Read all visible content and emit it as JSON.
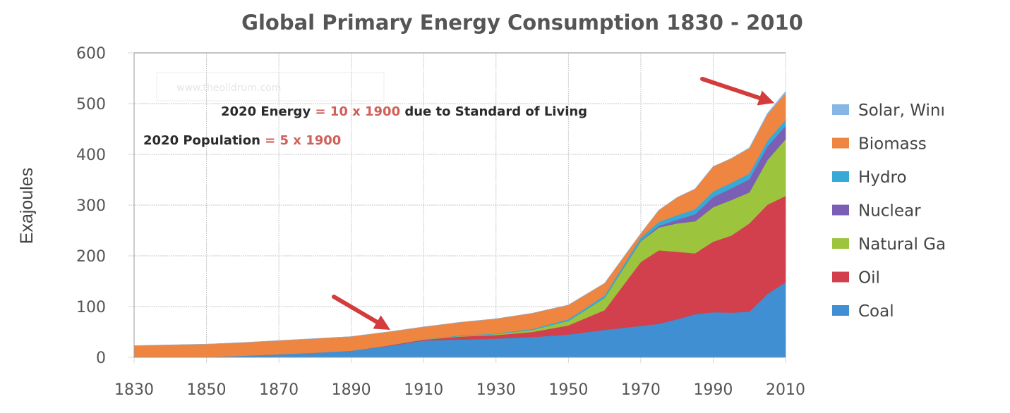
{
  "chart_data": {
    "type": "area",
    "stacked": true,
    "title": "Global Primary Energy Consumption 1830 - 2010",
    "xlabel": "",
    "ylabel": "Exajoules",
    "xlim": [
      1830,
      2010
    ],
    "ylim": [
      0,
      600
    ],
    "grid": true,
    "legend_position": "right",
    "x_ticks": [
      1830,
      1850,
      1870,
      1890,
      1910,
      1930,
      1950,
      1970,
      1990,
      2010
    ],
    "y_ticks": [
      0,
      100,
      200,
      300,
      400,
      500,
      600
    ],
    "x": [
      1830,
      1850,
      1860,
      1870,
      1880,
      1890,
      1900,
      1910,
      1920,
      1930,
      1940,
      1950,
      1960,
      1970,
      1975,
      1980,
      1985,
      1990,
      1995,
      2000,
      2005,
      2010
    ],
    "series": [
      {
        "name": "Coal",
        "color": "#3f8fd2",
        "values": [
          0,
          1,
          3,
          6,
          9,
          13,
          22,
          33,
          35,
          37,
          40,
          45,
          54,
          62,
          66,
          75,
          85,
          89,
          88,
          90,
          125,
          148
        ]
      },
      {
        "name": "Oil",
        "color": "#d2404e",
        "values": [
          0,
          0,
          0,
          0,
          0,
          0,
          1,
          2,
          6,
          7,
          10,
          18,
          39,
          126,
          145,
          133,
          120,
          139,
          152,
          174,
          176,
          170
        ]
      },
      {
        "name": "Natural Gas",
        "color": "#9cc43c",
        "values": [
          0,
          0,
          0,
          0,
          0,
          0,
          0,
          1,
          1,
          2,
          4,
          9,
          24,
          41,
          45,
          56,
          63,
          68,
          70,
          61,
          88,
          112
        ]
      },
      {
        "name": "Nuclear",
        "color": "#7b5fb4",
        "values": [
          0,
          0,
          0,
          0,
          0,
          0,
          0,
          0,
          0,
          0,
          0,
          0,
          0,
          1,
          3,
          7,
          14,
          20,
          23,
          26,
          27,
          26
        ]
      },
      {
        "name": "Hydro",
        "color": "#36a9d6",
        "values": [
          0,
          0,
          0,
          0,
          0,
          0,
          0,
          0,
          1,
          1,
          2,
          3,
          5,
          6,
          8,
          9,
          10,
          11,
          11,
          11,
          11,
          12
        ]
      },
      {
        "name": "Biomass",
        "color": "#ee8540",
        "values": [
          23,
          25,
          26,
          27,
          28,
          28,
          27,
          24,
          26,
          29,
          31,
          28,
          24,
          8,
          23,
          35,
          40,
          49,
          48,
          50,
          52,
          52
        ]
      },
      {
        "name": "Solar, Wind",
        "color": "#86b6e6",
        "values": [
          0,
          0,
          0,
          0,
          0,
          0,
          0,
          0,
          0,
          0,
          0,
          0,
          0,
          0,
          0,
          0,
          0,
          0,
          0,
          1,
          2,
          4
        ]
      }
    ],
    "legend_order": [
      "Solar, Wind",
      "Biomass",
      "Hydro",
      "Nuclear",
      "Natural Gas",
      "Oil",
      "Coal"
    ],
    "legend_labels": [
      "Solar, Winı",
      "Biomass",
      "Hydro",
      "Nuclear",
      "Natural Ga",
      "Oil",
      "Coal"
    ],
    "annotations": [
      {
        "parts": [
          {
            "text": "2020 Energy ",
            "highlight": false
          },
          {
            "text": "= 10 x 1900",
            "highlight": true
          },
          {
            "text": " due to Standard of Living",
            "highlight": false
          }
        ]
      },
      {
        "parts": [
          {
            "text": "2020 Population ",
            "highlight": false
          },
          {
            "text": "= 5 x 1900",
            "highlight": true
          }
        ]
      }
    ],
    "arrows": [
      {
        "points_to_year": 2010,
        "label": "arrow-to-2010-total"
      },
      {
        "points_to_year": 1900,
        "label": "arrow-to-1900-total"
      }
    ],
    "highlight_color": "#d0605a",
    "arrow_color": "#d33c3c",
    "watermark": "www.theoildrum.com"
  }
}
